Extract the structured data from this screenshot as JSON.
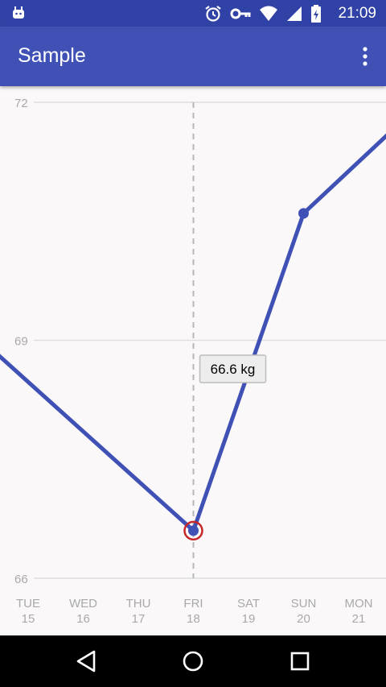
{
  "app": {
    "title": "Sample"
  },
  "status_bar": {
    "time": "21:09",
    "icons": [
      "android-debug-icon",
      "alarm-icon",
      "vpn-key-icon",
      "wifi-icon",
      "signal-icon",
      "battery-icon"
    ]
  },
  "toolbar": {
    "menu_icon": "more-vert-icon"
  },
  "chart_data": {
    "type": "line",
    "y_ticks": [
      "72",
      "69",
      "66"
    ],
    "ylim": [
      66,
      72
    ],
    "x": [
      {
        "day": "TUE",
        "date": "15"
      },
      {
        "day": "WED",
        "date": "16"
      },
      {
        "day": "THU",
        "date": "17"
      },
      {
        "day": "FRI",
        "date": "18"
      },
      {
        "day": "SAT",
        "date": "19"
      },
      {
        "day": "SUN",
        "date": "20"
      },
      {
        "day": "MON",
        "date": "21"
      }
    ],
    "series": [
      {
        "color": "#3f51b5",
        "points": [
          {
            "x": "MON 14",
            "y": 69.1
          },
          {
            "x": "FRI 18",
            "y": 66.6
          },
          {
            "x": "SUN 20",
            "y": 70.6
          },
          {
            "x": "TUE 22",
            "y": 71.9
          }
        ]
      }
    ],
    "selected": {
      "x": "FRI 18",
      "label": "66.6 kg"
    },
    "highlight_color": "#c62828",
    "grid": true
  },
  "nav_bar": {
    "buttons": [
      "back-icon",
      "home-icon",
      "recents-icon"
    ]
  }
}
